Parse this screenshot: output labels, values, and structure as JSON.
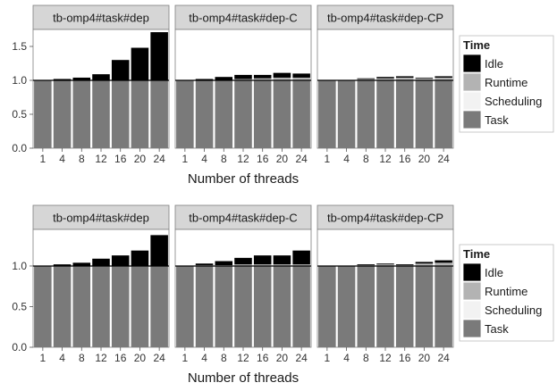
{
  "chart_data": [
    {
      "type": "bar",
      "stacked": true,
      "xlabel": "Number of threads",
      "ylabel": "",
      "ylim": [
        0,
        1.75
      ],
      "yticks": [
        "0.0",
        "0.5",
        "1.0",
        "1.5"
      ],
      "ytick_values": [
        0,
        0.5,
        1.0,
        1.5
      ],
      "reference_line": 1.0,
      "categories": [
        "1",
        "4",
        "8",
        "12",
        "16",
        "20",
        "24"
      ],
      "legend": {
        "title": "Time",
        "position": "right",
        "entries": [
          {
            "label": "Idle",
            "color": "#000000"
          },
          {
            "label": "Runtime",
            "color": "#b3b3b3"
          },
          {
            "label": "Scheduling",
            "color": "#f2f2f2"
          },
          {
            "label": "Task",
            "color": "#7a7a7a"
          }
        ]
      },
      "panels": [
        {
          "title": "tb-omp4#task#dep",
          "task": [
            1.0,
            1.0,
            1.0,
            1.0,
            1.0,
            1.0,
            1.0
          ],
          "scheduling": [
            0.0,
            0.0,
            0.0,
            0.0,
            0.0,
            0.0,
            0.0
          ],
          "runtime": [
            0.0,
            0.0,
            0.0,
            0.0,
            0.0,
            0.0,
            0.0
          ],
          "idle": [
            0.0,
            0.02,
            0.04,
            0.09,
            0.3,
            0.48,
            0.71
          ]
        },
        {
          "title": "tb-omp4#task#dep-C",
          "task": [
            1.0,
            1.0,
            1.0,
            1.0,
            1.0,
            1.0,
            1.0
          ],
          "scheduling": [
            0.0,
            0.0,
            0.0,
            0.0,
            0.0,
            0.0,
            0.0
          ],
          "runtime": [
            0.0,
            0.0,
            0.0,
            0.02,
            0.03,
            0.04,
            0.04
          ],
          "idle": [
            0.0,
            0.02,
            0.05,
            0.06,
            0.05,
            0.07,
            0.06
          ]
        },
        {
          "title": "tb-omp4#task#dep-CP",
          "task": [
            1.0,
            1.0,
            1.0,
            1.0,
            1.0,
            1.0,
            1.0
          ],
          "scheduling": [
            0.0,
            0.0,
            0.0,
            0.0,
            0.0,
            0.0,
            0.0
          ],
          "runtime": [
            0.0,
            0.0,
            0.02,
            0.03,
            0.04,
            0.03,
            0.04
          ],
          "idle": [
            0.0,
            0.0,
            0.01,
            0.02,
            0.02,
            0.01,
            0.02
          ]
        }
      ]
    },
    {
      "type": "bar",
      "stacked": true,
      "xlabel": "Number of threads",
      "ylabel": "",
      "ylim": [
        0,
        1.45
      ],
      "yticks": [
        "0.0",
        "0.5",
        "1.0"
      ],
      "ytick_values": [
        0,
        0.5,
        1.0
      ],
      "reference_line": 1.0,
      "categories": [
        "1",
        "4",
        "8",
        "12",
        "16",
        "20",
        "24"
      ],
      "legend": {
        "title": "Time",
        "position": "right",
        "entries": [
          {
            "label": "Idle",
            "color": "#000000"
          },
          {
            "label": "Runtime",
            "color": "#b3b3b3"
          },
          {
            "label": "Scheduling",
            "color": "#f2f2f2"
          },
          {
            "label": "Task",
            "color": "#7a7a7a"
          }
        ]
      },
      "panels": [
        {
          "title": "tb-omp4#task#dep",
          "task": [
            1.0,
            1.0,
            1.0,
            1.0,
            1.0,
            1.0,
            1.0
          ],
          "scheduling": [
            0.0,
            0.0,
            0.0,
            0.0,
            0.0,
            0.0,
            0.0
          ],
          "runtime": [
            0.0,
            0.0,
            0.0,
            0.0,
            0.0,
            0.0,
            0.0
          ],
          "idle": [
            0.0,
            0.02,
            0.04,
            0.09,
            0.13,
            0.19,
            0.38
          ]
        },
        {
          "title": "tb-omp4#task#dep-C",
          "task": [
            1.0,
            1.0,
            1.0,
            1.0,
            1.0,
            1.0,
            1.0
          ],
          "scheduling": [
            0.0,
            0.0,
            0.0,
            0.0,
            0.0,
            0.0,
            0.0
          ],
          "runtime": [
            0.0,
            0.01,
            0.01,
            0.02,
            0.02,
            0.02,
            0.02
          ],
          "idle": [
            0.0,
            0.02,
            0.05,
            0.08,
            0.11,
            0.11,
            0.17
          ]
        },
        {
          "title": "tb-omp4#task#dep-CP",
          "task": [
            1.0,
            1.0,
            1.0,
            1.0,
            1.0,
            1.0,
            1.0
          ],
          "scheduling": [
            0.0,
            0.0,
            0.0,
            0.0,
            0.0,
            0.0,
            0.0
          ],
          "runtime": [
            0.0,
            0.0,
            0.01,
            0.02,
            0.01,
            0.03,
            0.04
          ],
          "idle": [
            0.0,
            0.0,
            0.01,
            0.01,
            0.01,
            0.02,
            0.03
          ]
        }
      ]
    }
  ]
}
